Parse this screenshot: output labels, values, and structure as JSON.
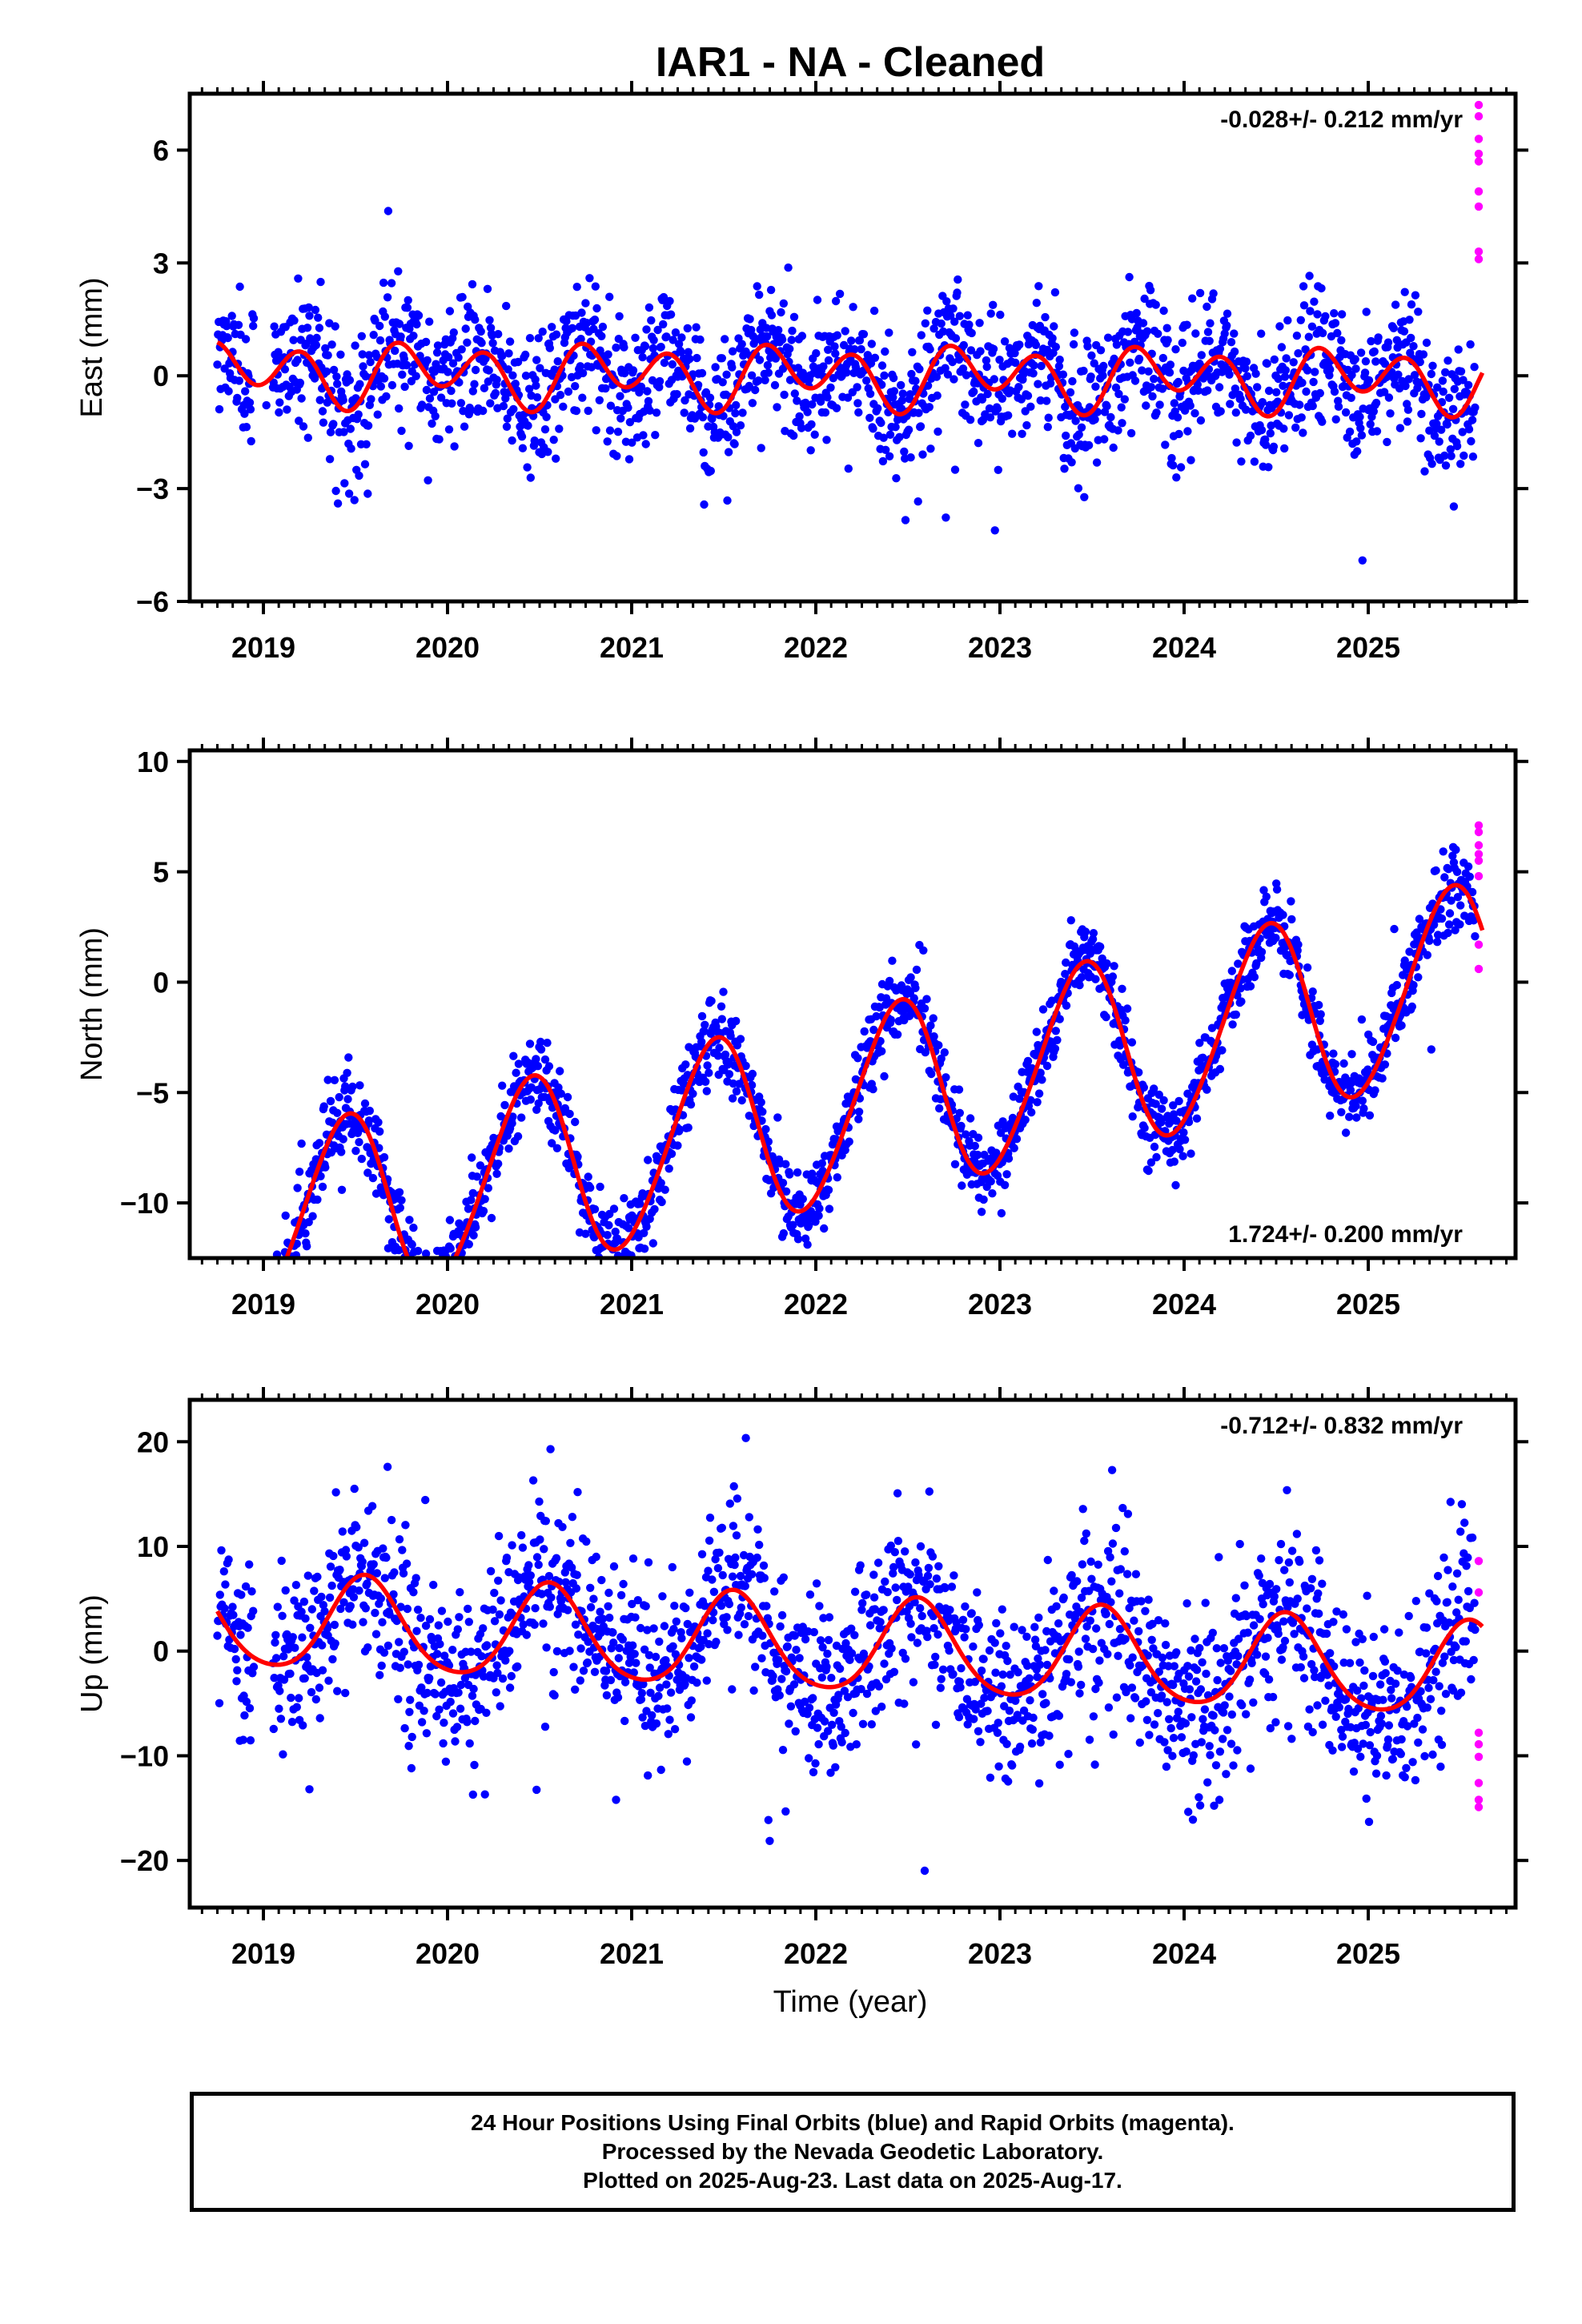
{
  "chart_data": {
    "type": "scatter",
    "title": "IAR1  - NA - Cleaned",
    "xlabel": "Time (year)",
    "xlim": [
      2018.6,
      2025.8
    ],
    "xticks": [
      "2019",
      "2020",
      "2021",
      "2022",
      "2023",
      "2024",
      "2025"
    ],
    "legend": {
      "series": [
        {
          "name": "Final Orbits",
          "color": "#0000ff"
        },
        {
          "name": "Rapid Orbits",
          "color": "#ff00ff"
        },
        {
          "name": "Model fit",
          "color": "#ff0000"
        }
      ]
    },
    "panels": [
      {
        "id": "east",
        "ylabel": "East (mm)",
        "ylim": [
          -6,
          7.5
        ],
        "yticks": [
          "6",
          "3",
          "0",
          "−3",
          "−6"
        ],
        "yticks_values": [
          6,
          3,
          0,
          -3,
          -6
        ],
        "rate_label": "-0.028+/- 0.212 mm/yr",
        "rate_position": "top-right",
        "model": {
          "intercept": 0.0,
          "rate": -0.028,
          "annual_sin": -0.2,
          "annual_cos": 0.3,
          "semiannual_sin": 0.3,
          "semiannual_cos": -0.6
        },
        "final_orbits": {
          "start": 2018.75,
          "end": 2025.58,
          "noise": 0.9,
          "points": 1900
        },
        "rapid_orbits": [
          [
            2025.6,
            7.2
          ],
          [
            2025.6,
            6.9
          ],
          [
            2025.6,
            6.3
          ],
          [
            2025.6,
            5.9
          ],
          [
            2025.6,
            5.7
          ],
          [
            2025.6,
            4.9
          ],
          [
            2025.6,
            4.5
          ],
          [
            2025.6,
            3.3
          ],
          [
            2025.6,
            3.1
          ]
        ]
      },
      {
        "id": "north",
        "ylabel": "North (mm)",
        "ylim": [
          -12.5,
          10.5
        ],
        "yticks": [
          "10",
          "5",
          "0",
          "−5",
          "−10"
        ],
        "yticks_values": [
          10,
          5,
          0,
          -5,
          -10
        ],
        "rate_label": "1.724+/- 0.200 mm/yr",
        "rate_position": "bottom-right",
        "model": {
          "intercept": -6.0,
          "rate": 1.724,
          "annual_sin": 1.5,
          "annual_cos": -4.0,
          "semiannual_sin": 0.2,
          "semiannual_cos": 0.3
        },
        "final_orbits": {
          "start": 2018.75,
          "end": 2025.58,
          "noise": 0.9,
          "points": 1900
        },
        "rapid_orbits": [
          [
            2025.6,
            7.1
          ],
          [
            2025.6,
            6.8
          ],
          [
            2025.6,
            6.2
          ],
          [
            2025.6,
            5.8
          ],
          [
            2025.6,
            5.5
          ],
          [
            2025.6,
            4.8
          ],
          [
            2025.6,
            1.7
          ],
          [
            2025.6,
            0.6
          ]
        ]
      },
      {
        "id": "up",
        "ylabel": "Up (mm)",
        "ylim": [
          -24.5,
          24
        ],
        "yticks": [
          "20",
          "10",
          "0",
          "−10",
          "−20"
        ],
        "yticks_values": [
          20,
          10,
          0,
          -10,
          -20
        ],
        "rate_label": "-0.712+/- 0.832 mm/yr",
        "rate_position": "top-right",
        "model": {
          "intercept": 0.5,
          "rate": -0.712,
          "annual_sin": -1.5,
          "annual_cos": -4.2,
          "semiannual_sin": 0.3,
          "semiannual_cos": 0.5
        },
        "final_orbits": {
          "start": 2018.75,
          "end": 2025.58,
          "noise": 4.3,
          "points": 1900
        },
        "rapid_orbits": [
          [
            2025.6,
            8.6
          ],
          [
            2025.6,
            5.6
          ],
          [
            2025.6,
            -7.8
          ],
          [
            2025.6,
            -8.9
          ],
          [
            2025.6,
            -10.1
          ],
          [
            2025.6,
            -12.6
          ],
          [
            2025.6,
            -14.2
          ],
          [
            2025.6,
            -14.9
          ]
        ]
      }
    ]
  },
  "footer": {
    "line1": "24 Hour Positions Using Final Orbits (blue) and Rapid Orbits (magenta).",
    "line2": "Processed by the Nevada Geodetic Laboratory.",
    "line3": "Plotted on 2025-Aug-23. Last data on 2025-Aug-17."
  }
}
